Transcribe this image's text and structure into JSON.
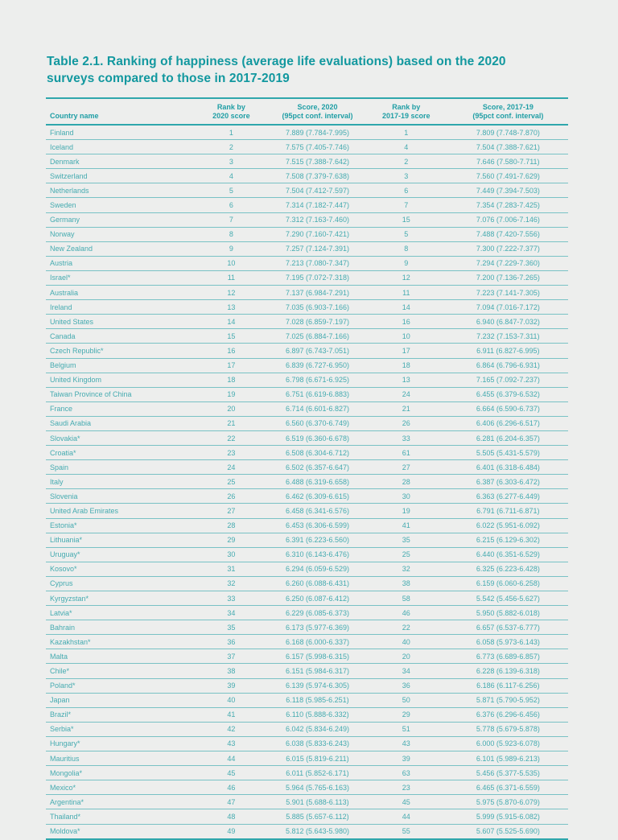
{
  "page": {
    "background_color": "#edeeed",
    "accent_color": "#12989f",
    "text_color": "#45abb0"
  },
  "table": {
    "title_line1": "Table 2.1. Ranking of happiness (average life evaluations) based on the 2020",
    "title_line2": "surveys compared to those in 2017-2019",
    "columns": [
      {
        "key": "country",
        "lines": [
          "Country name"
        ]
      },
      {
        "key": "rank-2020",
        "lines": [
          "Rank by",
          "2020 score"
        ]
      },
      {
        "key": "score-2020",
        "lines": [
          "Score, 2020",
          "(95pct conf. interval)"
        ]
      },
      {
        "key": "rank-2017-19",
        "lines": [
          "Rank by",
          "2017-19 score"
        ]
      },
      {
        "key": "score-2017-19",
        "lines": [
          "Score, 2017-19",
          "(95pct conf. interval)"
        ]
      }
    ],
    "rows": [
      [
        "Finland",
        "1",
        "7.889 (7.784-7.995)",
        "1",
        "7.809 (7.748-7.870)"
      ],
      [
        "Iceland",
        "2",
        "7.575 (7.405-7.746)",
        "4",
        "7.504 (7.388-7.621)"
      ],
      [
        "Denmark",
        "3",
        "7.515 (7.388-7.642)",
        "2",
        "7.646 (7.580-7.711)"
      ],
      [
        "Switzerland",
        "4",
        "7.508 (7.379-7.638)",
        "3",
        "7.560 (7.491-7.629)"
      ],
      [
        "Netherlands",
        "5",
        "7.504 (7.412-7.597)",
        "6",
        "7.449 (7.394-7.503)"
      ],
      [
        "Sweden",
        "6",
        "7.314 (7.182-7.447)",
        "7",
        "7.354 (7.283-7.425)"
      ],
      [
        "Germany",
        "7",
        "7.312 (7.163-7.460)",
        "15",
        "7.076 (7.006-7.146)"
      ],
      [
        "Norway",
        "8",
        "7.290 (7.160-7.421)",
        "5",
        "7.488 (7.420-7.556)"
      ],
      [
        "New Zealand",
        "9",
        "7.257 (7.124-7.391)",
        "8",
        "7.300 (7.222-7.377)"
      ],
      [
        "Austria",
        "10",
        "7.213 (7.080-7.347)",
        "9",
        "7.294 (7.229-7.360)"
      ],
      [
        "Israel*",
        "11",
        "7.195 (7.072-7.318)",
        "12",
        "7.200 (7.136-7.265)"
      ],
      [
        "Australia",
        "12",
        "7.137 (6.984-7.291)",
        "11",
        "7.223 (7.141-7.305)"
      ],
      [
        "Ireland",
        "13",
        "7.035 (6.903-7.166)",
        "14",
        "7.094 (7.016-7.172)"
      ],
      [
        "United States",
        "14",
        "7.028 (6.859-7.197)",
        "16",
        "6.940 (6.847-7.032)"
      ],
      [
        "Canada",
        "15",
        "7.025 (6.884-7.166)",
        "10",
        "7.232 (7.153-7.311)"
      ],
      [
        "Czech Republic*",
        "16",
        "6.897 (6.743-7.051)",
        "17",
        "6.911 (6.827-6.995)"
      ],
      [
        "Belgium",
        "17",
        "6.839 (6.727-6.950)",
        "18",
        "6.864 (6.796-6.931)"
      ],
      [
        "United Kingdom",
        "18",
        "6.798 (6.671-6.925)",
        "13",
        "7.165 (7.092-7.237)"
      ],
      [
        "Taiwan Province of China",
        "19",
        "6.751 (6.619-6.883)",
        "24",
        "6.455 (6.379-6.532)"
      ],
      [
        "France",
        "20",
        "6.714 (6.601-6.827)",
        "21",
        "6.664 (6.590-6.737)"
      ],
      [
        "Saudi Arabia",
        "21",
        "6.560 (6.370-6.749)",
        "26",
        "6.406 (6.296-6.517)"
      ],
      [
        "Slovakia*",
        "22",
        "6.519 (6.360-6.678)",
        "33",
        "6.281 (6.204-6.357)"
      ],
      [
        "Croatia*",
        "23",
        "6.508 (6.304-6.712)",
        "61",
        "5.505 (5.431-5.579)"
      ],
      [
        "Spain",
        "24",
        "6.502 (6.357-6.647)",
        "27",
        "6.401 (6.318-6.484)"
      ],
      [
        "Italy",
        "25",
        "6.488 (6.319-6.658)",
        "28",
        "6.387 (6.303-6.472)"
      ],
      [
        "Slovenia",
        "26",
        "6.462 (6.309-6.615)",
        "30",
        "6.363 (6.277-6.449)"
      ],
      [
        "United Arab Emirates",
        "27",
        "6.458 (6.341-6.576)",
        "19",
        "6.791 (6.711-6.871)"
      ],
      [
        "Estonia*",
        "28",
        "6.453 (6.306-6.599)",
        "41",
        "6.022 (5.951-6.092)"
      ],
      [
        "Lithuania*",
        "29",
        "6.391 (6.223-6.560)",
        "35",
        "6.215 (6.129-6.302)"
      ],
      [
        "Uruguay*",
        "30",
        "6.310 (6.143-6.476)",
        "25",
        "6.440 (6.351-6.529)"
      ],
      [
        "Kosovo*",
        "31",
        "6.294 (6.059-6.529)",
        "32",
        "6.325 (6.223-6.428)"
      ],
      [
        "Cyprus",
        "32",
        "6.260 (6.088-6.431)",
        "38",
        "6.159 (6.060-6.258)"
      ],
      [
        "Kyrgyzstan*",
        "33",
        "6.250 (6.087-6.412)",
        "58",
        "5.542 (5.456-5.627)"
      ],
      [
        "Latvia*",
        "34",
        "6.229 (6.085-6.373)",
        "46",
        "5.950 (5.882-6.018)"
      ],
      [
        "Bahrain",
        "35",
        "6.173 (5.977-6.369)",
        "22",
        "6.657 (6.537-6.777)"
      ],
      [
        "Kazakhstan*",
        "36",
        "6.168 (6.000-6.337)",
        "40",
        "6.058 (5.973-6.143)"
      ],
      [
        "Malta",
        "37",
        "6.157 (5.998-6.315)",
        "20",
        "6.773 (6.689-6.857)"
      ],
      [
        "Chile*",
        "38",
        "6.151 (5.984-6.317)",
        "34",
        "6.228 (6.139-6.318)"
      ],
      [
        "Poland*",
        "39",
        "6.139 (5.974-6.305)",
        "36",
        "6.186 (6.117-6.256)"
      ],
      [
        "Japan",
        "40",
        "6.118 (5.985-6.251)",
        "50",
        "5.871 (5.790-5.952)"
      ],
      [
        "Brazil*",
        "41",
        "6.110 (5.888-6.332)",
        "29",
        "6.376 (6.296-6.456)"
      ],
      [
        "Serbia*",
        "42",
        "6.042 (5.834-6.249)",
        "51",
        "5.778 (5.679-5.878)"
      ],
      [
        "Hungary*",
        "43",
        "6.038 (5.833-6.243)",
        "43",
        "6.000 (5.923-6.078)"
      ],
      [
        "Mauritius",
        "44",
        "6.015 (5.819-6.211)",
        "39",
        "6.101 (5.989-6.213)"
      ],
      [
        "Mongolia*",
        "45",
        "6.011 (5.852-6.171)",
        "63",
        "5.456 (5.377-5.535)"
      ],
      [
        "Mexico*",
        "46",
        "5.964 (5.765-6.163)",
        "23",
        "6.465 (6.371-6.559)"
      ],
      [
        "Argentina*",
        "47",
        "5.901 (5.688-6.113)",
        "45",
        "5.975 (5.870-6.079)"
      ],
      [
        "Thailand*",
        "48",
        "5.885 (5.657-6.112)",
        "44",
        "5.999 (5.915-6.082)"
      ],
      [
        "Moldova*",
        "49",
        "5.812 (5.643-5.980)",
        "55",
        "5.607 (5.525-5.690)"
      ]
    ]
  }
}
